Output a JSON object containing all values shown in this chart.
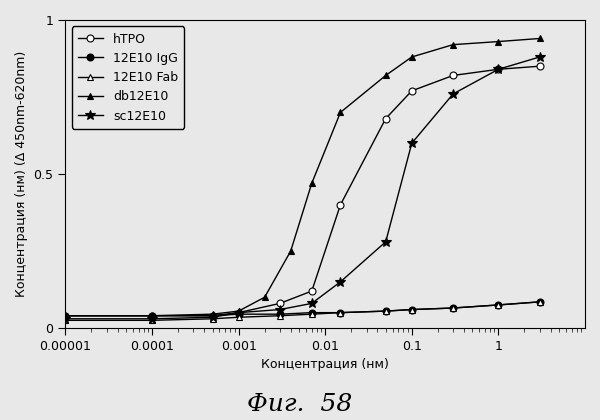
{
  "title": "Фиг.  58",
  "xlabel": "Концентрация (нм)",
  "ylabel": "Концентрация (нм) (Δ 450nm-620nm)",
  "xlim": [
    1e-05,
    10
  ],
  "ylim": [
    0,
    1.0
  ],
  "yticks": [
    0,
    0.5,
    1
  ],
  "xtick_positions": [
    1e-05,
    0.0001,
    0.001,
    0.01,
    0.1,
    1
  ],
  "xtick_labels": [
    "0.00001",
    "0.0001",
    "0.001",
    "0.01",
    "0.1",
    "1"
  ],
  "series": {
    "hTPO": {
      "x": [
        1e-05,
        0.0001,
        0.0005,
        0.001,
        0.003,
        0.007,
        0.015,
        0.05,
        0.1,
        0.3,
        1.0,
        3.0
      ],
      "y": [
        0.04,
        0.04,
        0.04,
        0.05,
        0.08,
        0.12,
        0.4,
        0.68,
        0.77,
        0.82,
        0.84,
        0.85
      ],
      "color": "#000000",
      "marker": "o",
      "marker_fill": "white",
      "linestyle": "-",
      "label": "hTPO"
    },
    "12E10_IgG": {
      "x": [
        1e-05,
        0.0001,
        0.0005,
        0.001,
        0.003,
        0.007,
        0.015,
        0.05,
        0.1,
        0.3,
        1.0,
        3.0
      ],
      "y": [
        0.04,
        0.04,
        0.04,
        0.045,
        0.045,
        0.05,
        0.05,
        0.055,
        0.06,
        0.065,
        0.075,
        0.085
      ],
      "color": "#000000",
      "marker": "o",
      "marker_fill": "black",
      "linestyle": "-",
      "label": "12E10 IgG"
    },
    "12E10_Fab": {
      "x": [
        1e-05,
        0.0001,
        0.0005,
        0.001,
        0.003,
        0.007,
        0.015,
        0.05,
        0.1,
        0.3,
        1.0,
        3.0
      ],
      "y": [
        0.025,
        0.025,
        0.03,
        0.035,
        0.04,
        0.045,
        0.05,
        0.055,
        0.06,
        0.065,
        0.075,
        0.085
      ],
      "color": "#000000",
      "marker": "^",
      "marker_fill": "white",
      "linestyle": "-",
      "label": "12E10 Fab"
    },
    "db12E10": {
      "x": [
        1e-05,
        0.0001,
        0.0005,
        0.001,
        0.002,
        0.004,
        0.007,
        0.015,
        0.05,
        0.1,
        0.3,
        1.0,
        3.0
      ],
      "y": [
        0.04,
        0.04,
        0.045,
        0.055,
        0.1,
        0.25,
        0.47,
        0.7,
        0.82,
        0.88,
        0.92,
        0.93,
        0.94
      ],
      "color": "#000000",
      "marker": "^",
      "marker_fill": "black",
      "linestyle": "-",
      "label": "db12E10"
    },
    "sc12E10": {
      "x": [
        1e-05,
        0.0001,
        0.0005,
        0.001,
        0.003,
        0.007,
        0.015,
        0.05,
        0.1,
        0.3,
        1.0,
        3.0
      ],
      "y": [
        0.03,
        0.03,
        0.035,
        0.05,
        0.06,
        0.08,
        0.15,
        0.28,
        0.6,
        0.76,
        0.84,
        0.88
      ],
      "color": "#000000",
      "marker": "*",
      "marker_fill": "black",
      "linestyle": "-",
      "label": "sc12E10"
    }
  },
  "background_color": "#e8e8e8",
  "legend_fontsize": 9,
  "axis_fontsize": 9,
  "title_fontsize": 18
}
